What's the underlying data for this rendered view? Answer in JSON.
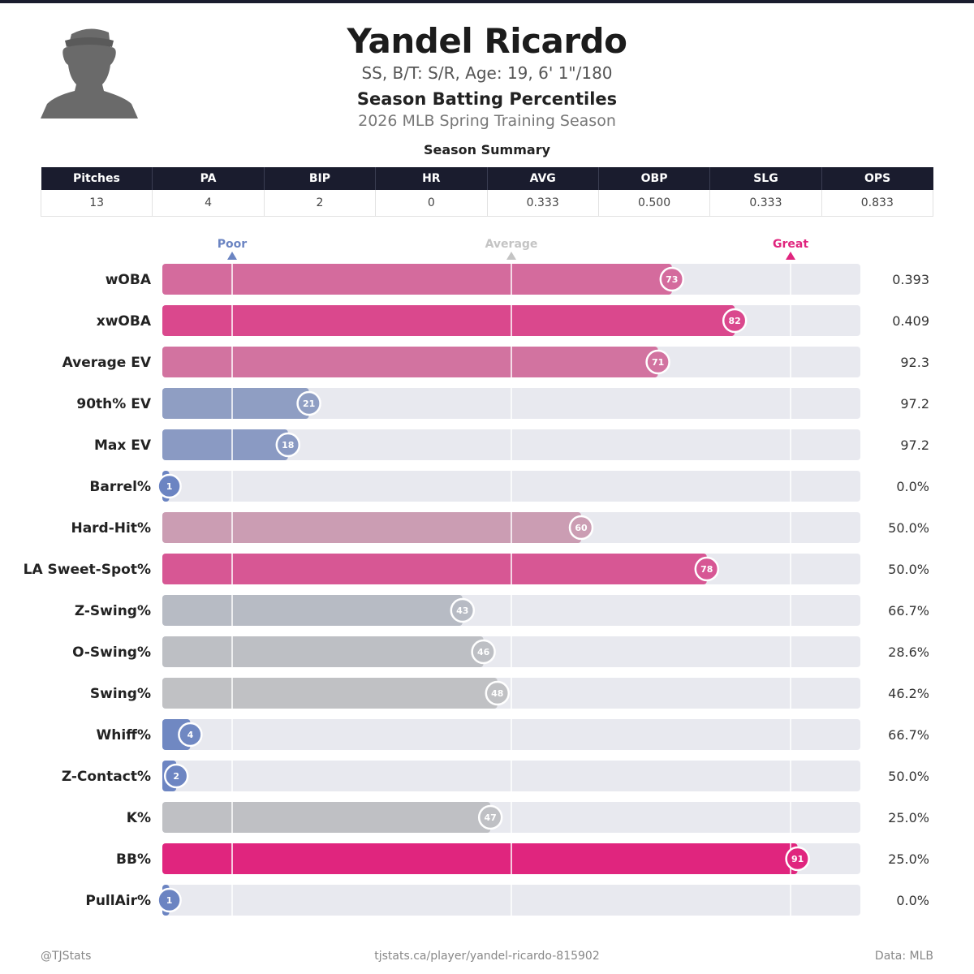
{
  "player": {
    "name": "Yandel Ricardo",
    "details": "SS, B/T: S/R, Age: 19, 6' 1\"/180",
    "section_title": "Season Batting Percentiles",
    "season": "2026 MLB Spring Training Season",
    "avatar_icon": "player-silhouette-icon"
  },
  "summary": {
    "title": "Season Summary",
    "headers": [
      "Pitches",
      "PA",
      "BIP",
      "HR",
      "AVG",
      "OBP",
      "SLG",
      "OPS"
    ],
    "values": [
      "13",
      "4",
      "2",
      "0",
      "0.333",
      "0.500",
      "0.333",
      "0.833"
    ],
    "header_bg": "#1a1c2e"
  },
  "chart_data": {
    "type": "bar",
    "orientation": "horizontal",
    "title": "Season Batting Percentiles",
    "xlim": [
      0,
      100
    ],
    "scale_markers": [
      {
        "label": "Poor",
        "value": 10,
        "color": "#6b84c2"
      },
      {
        "label": "Average",
        "value": 50,
        "color": "#c4c4c4"
      },
      {
        "label": "Great",
        "value": 90,
        "color": "#e0257e"
      }
    ],
    "categories": [
      "wOBA",
      "xwOBA",
      "Average EV",
      "90th% EV",
      "Max EV",
      "Barrel%",
      "Hard-Hit%",
      "LA Sweet-Spot%",
      "Z-Swing%",
      "O-Swing%",
      "Swing%",
      "Whiff%",
      "Z-Contact%",
      "K%",
      "BB%",
      "PullAir%"
    ],
    "percentiles": [
      73,
      82,
      71,
      21,
      18,
      1,
      60,
      78,
      43,
      46,
      48,
      4,
      2,
      47,
      91,
      1
    ],
    "stat_values": [
      "0.393",
      "0.409",
      "92.3",
      "97.2",
      "97.2",
      "0.0%",
      "50.0%",
      "50.0%",
      "66.7%",
      "28.6%",
      "46.2%",
      "66.7%",
      "50.0%",
      "25.0%",
      "25.0%",
      "0.0%"
    ],
    "colors": {
      "low": "#6b84c2",
      "mid": "#c4c4c4",
      "high": "#e0257e",
      "track": "#e8e9ef"
    }
  },
  "footer": {
    "left": "@TJStats",
    "center": "tjstats.ca/player/yandel-ricardo-815902",
    "right": "Data: MLB"
  }
}
